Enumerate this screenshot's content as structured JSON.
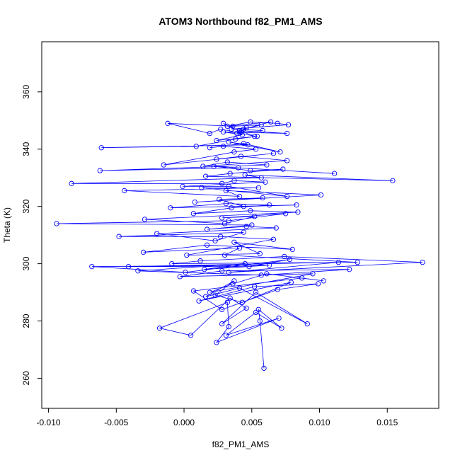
{
  "chart_data": {
    "type": "line",
    "title": "ATOM3 Northbound f82_PM1_AMS",
    "xlabel": "f82_PM1_AMS",
    "ylabel": "Theta (K)",
    "xlim": [
      -0.0105,
      0.0188
    ],
    "ylim": [
      249.5,
      377.5
    ],
    "xticks": [
      -0.01,
      -0.005,
      0.0,
      0.005,
      0.01,
      0.015
    ],
    "xtick_labels": [
      "-0.010",
      "-0.005",
      "0.000",
      "0.005",
      "0.010",
      "0.015"
    ],
    "yticks": [
      260,
      280,
      300,
      320,
      340,
      360
    ],
    "ytick_labels": [
      "260",
      "280",
      "300",
      "320",
      "340",
      "360"
    ],
    "grid": false,
    "marker": "open-circle",
    "color": "#0000ff",
    "series": [
      {
        "x": [
          0.0059,
          0.0056,
          0.0055,
          0.0072,
          0.0053,
          0.0031,
          0.007,
          0.0024,
          0.0033,
          0.0032,
          -0.0018,
          0.0005,
          0.0034,
          0.0046,
          0.0028,
          0.0053,
          0.0091,
          0.0041,
          0.0016,
          0.0037,
          0.0023,
          0.0043,
          0.0079,
          0.0011,
          0.0052,
          0.0099,
          0.0069,
          0.0028,
          0.0007,
          0.0087,
          0.0103,
          0.0061,
          0.0036,
          0.0019,
          0.0095,
          -0.0003,
          0.0028,
          0.0122,
          0.0057,
          -0.0034,
          0.0045,
          0.0015,
          0.0063,
          -0.0068,
          0.0001,
          0.0078,
          0.0048,
          -0.0041,
          0.0114,
          0.0033,
          0.0176,
          0.0074,
          0.0012,
          -0.0009,
          0.0128,
          0.003,
          0.0041,
          -0.003,
          0.0017,
          0.008,
          0.0037,
          0.0056,
          0.0002,
          0.0066,
          0.0027,
          -0.0048,
          0.0044,
          0.0023,
          -0.002,
          0.0068,
          0.0046,
          0.0017,
          0.005,
          -0.0094,
          0.0033,
          0.0075,
          0.0028,
          0.0052,
          0.003,
          -0.0029,
          0.0084,
          0.0049,
          0.0007,
          0.0035,
          0.0063,
          0.0031,
          -0.001,
          0.0083,
          0.0044,
          0.0026,
          0.0058,
          0.0008,
          0.0101,
          0.0031,
          0.0041,
          -0.0044,
          0.0055,
          0.0013,
          0.0076,
          0.0033,
          -0.0001,
          0.006,
          0.0037,
          0.0028,
          -0.0083,
          0.0057,
          0.0045,
          0.0154,
          0.0016,
          0.0034,
          0.0073,
          0.0049,
          0.0022,
          0.0111,
          0.004,
          -0.0062,
          0.0061,
          0.0032,
          0.0014,
          0.0076,
          0.0042,
          0.0024,
          0.0066,
          -0.0015,
          0.0037,
          0.0053,
          0.0029,
          0.0019,
          0.0044,
          0.0071,
          0.0033,
          0.0047,
          -0.0061,
          0.0009,
          0.0038,
          0.0054,
          0.0024,
          0.0043,
          0.0029,
          0.0076,
          0.0041,
          0.0052,
          0.0027,
          0.0019,
          -0.0012,
          0.0036,
          0.0057,
          0.0044,
          0.0064,
          0.0032,
          0.0049,
          0.0069,
          0.0077,
          0.0035,
          0.0058,
          0.0039,
          0.0046,
          0.0042,
          0.0029
        ],
        "y": [
          263.5,
          280.0,
          284.0,
          277.5,
          283.0,
          275.0,
          281.0,
          272.5,
          278.0,
          286.5,
          277.5,
          275.0,
          288.0,
          284.5,
          279.0,
          290.0,
          279.0,
          291.5,
          288.5,
          294.0,
          289.0,
          286.5,
          293.5,
          287.0,
          292.0,
          293.0,
          291.0,
          284.0,
          290.5,
          295.0,
          294.0,
          296.5,
          293.0,
          290.0,
          296.5,
          295.5,
          297.5,
          298.0,
          296.0,
          297.5,
          300.0,
          298.0,
          299.5,
          299.0,
          297.0,
          301.5,
          299.0,
          299.0,
          300.5,
          297.0,
          300.5,
          302.5,
          301.0,
          300.0,
          300.5,
          303.0,
          305.5,
          304.0,
          306.5,
          305.0,
          307.5,
          303.5,
          303.0,
          308.5,
          309.5,
          309.5,
          311.0,
          308.0,
          310.5,
          312.5,
          313.0,
          312.0,
          313.5,
          314.0,
          315.0,
          317.5,
          316.0,
          316.5,
          314.0,
          315.5,
          318.0,
          318.5,
          317.5,
          319.5,
          320.5,
          321.0,
          319.5,
          320.5,
          320.0,
          322.5,
          323.0,
          321.5,
          324.0,
          325.5,
          323.5,
          325.5,
          326.5,
          326.5,
          323.5,
          327.0,
          327.0,
          328.5,
          329.0,
          328.0,
          328.0,
          330.0,
          331.0,
          329.0,
          330.5,
          331.5,
          333.0,
          332.5,
          334.0,
          331.5,
          333.5,
          332.5,
          334.5,
          335.5,
          334.0,
          336.0,
          337.5,
          336.5,
          338.5,
          334.5,
          339.0,
          340.0,
          341.0,
          340.5,
          342.0,
          339.0,
          342.5,
          341.5,
          340.5,
          341.0,
          343.5,
          344.5,
          343.0,
          345.0,
          346.0,
          345.5,
          346.5,
          344.5,
          347.0,
          345.5,
          349.0,
          348.0,
          348.5,
          347.0,
          349.5,
          348.0,
          349.5,
          349.0,
          348.5,
          347.0,
          346.5,
          345.5,
          347.5,
          346.0,
          349.0
        ]
      }
    ]
  }
}
